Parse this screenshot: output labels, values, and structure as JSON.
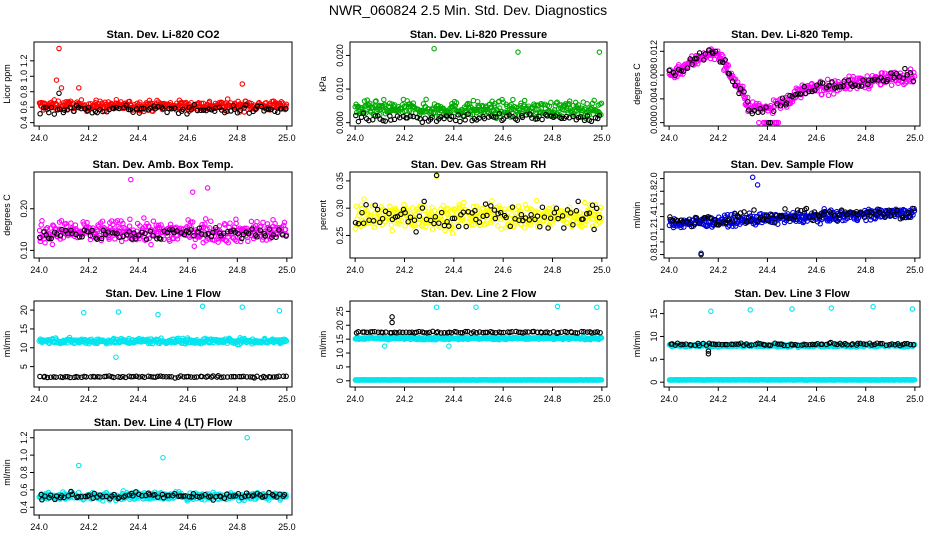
{
  "title": "NWR_060824  2.5 Min. Std. Dev. Diagnostics",
  "chart_data": [
    {
      "type": "scatter",
      "title": "Stan. Dev. Li-820 CO2",
      "xlabel": "",
      "ylabel": "Licor ppm",
      "xlim": [
        24.0,
        25.0
      ],
      "ylim": [
        0.4,
        1.4
      ],
      "xticks": [
        "24.0",
        "24.2",
        "24.4",
        "24.6",
        "24.8",
        "25.0"
      ],
      "yticks": [
        "0.4",
        "0.6",
        "0.8",
        "1.0",
        "1.2"
      ],
      "series": [
        {
          "name": "primary",
          "color": "#ff0000",
          "base": 0.62,
          "spread": 0.07,
          "outliers": [
            [
              24.08,
              1.36
            ],
            [
              24.07,
              0.95
            ],
            [
              24.09,
              0.85
            ],
            [
              24.82,
              0.9
            ],
            [
              24.16,
              0.85
            ]
          ]
        },
        {
          "name": "secondary",
          "color": "#000000",
          "base": 0.57,
          "spread": 0.06,
          "outliers": [
            [
              24.08,
              0.78
            ]
          ]
        }
      ]
    },
    {
      "type": "scatter",
      "title": "Stan. Dev. Li-820 Pressure",
      "xlabel": "",
      "ylabel": "kPa",
      "xlim": [
        24.0,
        25.0
      ],
      "ylim": [
        0.0,
        0.023
      ],
      "xticks": [
        "24.0",
        "24.2",
        "24.4",
        "24.6",
        "24.8",
        "25.0"
      ],
      "yticks": [
        "0.000",
        "0.010",
        "0.020"
      ],
      "series": [
        {
          "name": "primary",
          "color": "#00aa00",
          "base": 0.004,
          "spread": 0.0025,
          "outliers": [
            [
              24.32,
              0.022
            ],
            [
              24.66,
              0.021
            ],
            [
              24.99,
              0.021
            ]
          ]
        },
        {
          "name": "secondary",
          "color": "#000000",
          "base": 0.0015,
          "spread": 0.0015,
          "outliers": []
        }
      ]
    },
    {
      "type": "scatter",
      "title": "Stan. Dev. Li-820 Temp.",
      "xlabel": "",
      "ylabel": "degrees C",
      "xlim": [
        24.0,
        25.0
      ],
      "ylim": [
        0.0,
        0.013
      ],
      "xticks": [
        "24.0",
        "24.2",
        "24.4",
        "24.6",
        "24.8",
        "25.0"
      ],
      "yticks": [
        "0.000",
        "0.004",
        "0.008",
        "0.012"
      ],
      "series": [
        {
          "name": "primary",
          "color": "#ff00ff",
          "profile": "temp",
          "base": 0.0,
          "spread": 0.0012,
          "outliers": []
        },
        {
          "name": "secondary",
          "color": "#000000",
          "profile": "temp",
          "base": 0.0,
          "spread": 0.0012,
          "outliers": []
        }
      ]
    },
    {
      "type": "scatter",
      "title": "Stan. Dev. Amb. Box Temp.",
      "xlabel": "",
      "ylabel": "degrees C",
      "xlim": [
        24.0,
        25.0
      ],
      "ylim": [
        0.09,
        0.28
      ],
      "xticks": [
        "24.0",
        "24.2",
        "24.4",
        "24.6",
        "24.8",
        "25.0"
      ],
      "yticks": [
        "0.10",
        "0.20"
      ],
      "series": [
        {
          "name": "primary",
          "color": "#ff00ff",
          "base": 0.145,
          "spread": 0.028,
          "outliers": [
            [
              24.37,
              0.27
            ],
            [
              24.62,
              0.24
            ],
            [
              24.68,
              0.25
            ]
          ]
        },
        {
          "name": "secondary",
          "color": "#000000",
          "base": 0.14,
          "spread": 0.015,
          "outliers": []
        }
      ]
    },
    {
      "type": "scatter",
      "title": "Stan. Dev. Gas Stream RH",
      "xlabel": "",
      "ylabel": "percent",
      "xlim": [
        24.0,
        25.0
      ],
      "ylim": [
        0.215,
        0.36
      ],
      "xticks": [
        "24.0",
        "24.2",
        "24.4",
        "24.6",
        "24.8",
        "25.0"
      ],
      "yticks": [
        "0.25",
        "0.30",
        "0.35"
      ],
      "series": [
        {
          "name": "primary",
          "color": "#ffff00",
          "base": 0.285,
          "spread": 0.025,
          "outliers": [
            [
              24.33,
              0.358
            ]
          ]
        },
        {
          "name": "secondary",
          "color": "#000000",
          "base": 0.285,
          "spread": 0.025,
          "outliers": [
            [
              24.33,
              0.36
            ]
          ]
        }
      ]
    },
    {
      "type": "scatter",
      "title": "Stan. Dev. Sample Flow",
      "xlabel": "",
      "ylabel": "ml/min",
      "xlim": [
        24.0,
        25.0
      ],
      "ylim": [
        0.8,
        2.05
      ],
      "xticks": [
        "24.0",
        "24.2",
        "24.4",
        "24.6",
        "24.8",
        "25.0"
      ],
      "yticks": [
        "0.8",
        "1.0",
        "1.2",
        "1.4",
        "1.6",
        "1.8",
        "2.0"
      ],
      "series": [
        {
          "name": "primary",
          "color": "#0000dd",
          "base": 1.38,
          "spread": 0.09,
          "slope": 0.18,
          "outliers": [
            [
              24.34,
              2.02
            ],
            [
              24.36,
              1.9
            ],
            [
              24.13,
              0.82
            ]
          ]
        },
        {
          "name": "secondary",
          "color": "#000000",
          "base": 1.4,
          "spread": 0.1,
          "slope": 0.15,
          "outliers": [
            [
              24.13,
              0.8
            ]
          ]
        }
      ]
    },
    {
      "type": "scatter",
      "title": "Stan. Dev. Line 1 Flow",
      "xlabel": "",
      "ylabel": "ml/min",
      "xlim": [
        24.0,
        25.0
      ],
      "ylim": [
        0.5,
        21.5
      ],
      "xticks": [
        "24.0",
        "24.2",
        "24.4",
        "24.6",
        "24.8",
        "25.0"
      ],
      "yticks": [
        "5",
        "10",
        "15",
        "20"
      ],
      "series": [
        {
          "name": "primary",
          "color": "#00e5ee",
          "base": 11.8,
          "spread": 0.8,
          "outliers": [
            [
              24.18,
              19.3
            ],
            [
              24.32,
              19.5
            ],
            [
              24.48,
              18.8
            ],
            [
              24.66,
              21.0
            ],
            [
              24.82,
              20.8
            ],
            [
              24.97,
              19.8
            ],
            [
              24.31,
              7.5
            ]
          ]
        },
        {
          "name": "secondary",
          "color": "#000000",
          "base": 2.3,
          "spread": 0.25,
          "outliers": []
        }
      ]
    },
    {
      "type": "scatter",
      "title": "Stan. Dev. Line 2 Flow",
      "xlabel": "",
      "ylabel": "ml/min",
      "xlim": [
        24.0,
        25.0
      ],
      "ylim": [
        -1,
        27.5
      ],
      "xticks": [
        "24.0",
        "24.2",
        "24.4",
        "24.6",
        "24.8",
        "25.0"
      ],
      "yticks": [
        "0",
        "5",
        "10",
        "15",
        "20",
        "25"
      ],
      "series": [
        {
          "name": "primary",
          "color": "#00e5ee",
          "base": 15.3,
          "spread": 0.5,
          "outliers": [
            [
              24.33,
              26.5
            ],
            [
              24.49,
              26.5
            ],
            [
              24.82,
              26.8
            ],
            [
              24.98,
              26.5
            ],
            [
              24.12,
              12.5
            ],
            [
              24.38,
              12.5
            ]
          ]
        },
        {
          "name": "tertiary",
          "color": "#00e5ee",
          "base": 0.3,
          "spread": 0.05,
          "outliers": []
        },
        {
          "name": "secondary",
          "color": "#000000",
          "base": 17.5,
          "spread": 0.35,
          "outliers": [
            [
              24.15,
              23.0
            ],
            [
              24.15,
              21.0
            ]
          ]
        }
      ]
    },
    {
      "type": "scatter",
      "title": "Stan. Dev. Line 3 Flow",
      "xlabel": "",
      "ylabel": "ml/min",
      "xlim": [
        24.0,
        25.0
      ],
      "ylim": [
        -0.3,
        17.0
      ],
      "xticks": [
        "24.0",
        "24.2",
        "24.4",
        "24.6",
        "24.8",
        "25.0"
      ],
      "yticks": [
        "0",
        "5",
        "10",
        "15"
      ],
      "series": [
        {
          "name": "primary",
          "color": "#00e5ee",
          "base": 8.0,
          "spread": 0.3,
          "outliers": [
            [
              24.17,
              15.5
            ],
            [
              24.33,
              15.8
            ],
            [
              24.5,
              16.0
            ],
            [
              24.66,
              16.2
            ],
            [
              24.83,
              16.5
            ],
            [
              24.99,
              16.0
            ]
          ]
        },
        {
          "name": "tertiary",
          "color": "#00e5ee",
          "base": 0.5,
          "spread": 0.04,
          "outliers": []
        },
        {
          "name": "secondary",
          "color": "#000000",
          "base": 8.3,
          "spread": 0.3,
          "outliers": [
            [
              24.16,
              6.2
            ],
            [
              24.16,
              6.8
            ]
          ]
        }
      ]
    },
    {
      "type": "scatter",
      "title": "Stan. Dev. Line 4 (LT) Flow",
      "xlabel": "",
      "ylabel": "ml/min",
      "xlim": [
        24.0,
        25.0
      ],
      "ylim": [
        0.35,
        1.25
      ],
      "xticks": [
        "24.0",
        "24.2",
        "24.4",
        "24.6",
        "24.8",
        "25.0"
      ],
      "yticks": [
        "0.4",
        "0.6",
        "0.8",
        "1.0",
        "1.2"
      ],
      "series": [
        {
          "name": "primary",
          "color": "#00e5ee",
          "base": 0.53,
          "spread": 0.05,
          "outliers": [
            [
              24.5,
              0.97
            ],
            [
              24.84,
              1.2
            ],
            [
              24.16,
              0.88
            ]
          ]
        },
        {
          "name": "secondary",
          "color": "#000000",
          "base": 0.53,
          "spread": 0.04,
          "outliers": []
        }
      ]
    }
  ]
}
